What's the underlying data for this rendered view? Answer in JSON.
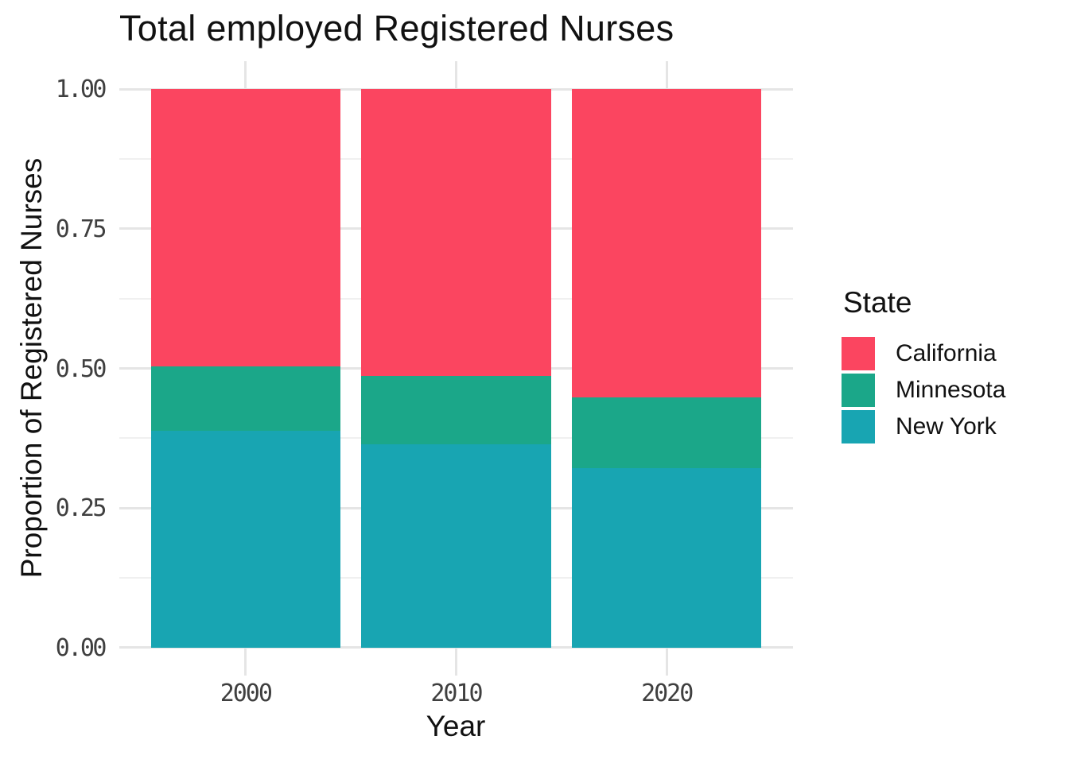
{
  "chart_data": {
    "type": "bar",
    "stacked": true,
    "title": "Total employed Registered Nurses",
    "xlabel": "Year",
    "ylabel": "Proportion of Registered Nurses",
    "categories": [
      "2000",
      "2010",
      "2020"
    ],
    "series": [
      {
        "name": "California",
        "color": "#FB4560",
        "values": [
          0.497,
          0.513,
          0.552
        ]
      },
      {
        "name": "Minnesota",
        "color": "#1BA789",
        "values": [
          0.115,
          0.123,
          0.127
        ]
      },
      {
        "name": "New York",
        "color": "#18A5B2",
        "values": [
          0.388,
          0.364,
          0.321
        ]
      }
    ],
    "stack_bottom_to_top": [
      "New York",
      "Minnesota",
      "California"
    ],
    "legend_title": "State",
    "legend_position": "right",
    "ylim": [
      0,
      1
    ],
    "y_major_ticks": [
      {
        "value": 0.0,
        "label": "0.00"
      },
      {
        "value": 0.25,
        "label": "0.25"
      },
      {
        "value": 0.5,
        "label": "0.50"
      },
      {
        "value": 0.75,
        "label": "0.75"
      },
      {
        "value": 1.0,
        "label": "1.00"
      }
    ],
    "y_minor_ticks": [
      0.125,
      0.375,
      0.625,
      0.875
    ],
    "grid": "horizontal-major-minor with vertical stubs at category centers",
    "background_color": "#FFFFFF",
    "grid_major_color": "#E5E5E5",
    "grid_minor_color": "#F0F0F0",
    "text_color": "#111111",
    "tick_label_color": "#3F3F3F"
  }
}
